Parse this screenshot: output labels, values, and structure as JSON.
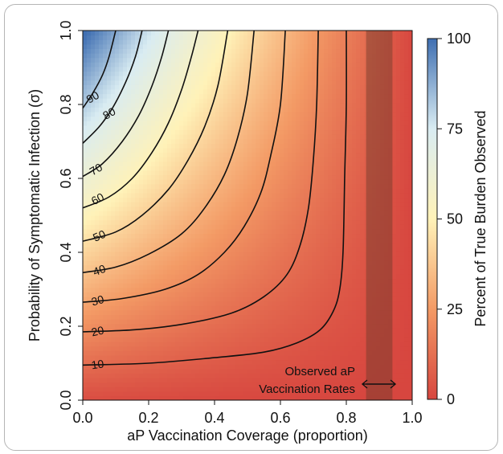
{
  "chart_data": {
    "type": "heatmap",
    "title": "",
    "xlabel": "aP Vaccination Coverage (proportion)",
    "ylabel": "Probability of Symptomatic Infection (σ)",
    "colorbar_label": "Percent of True Burden Observed",
    "xlim": [
      0,
      1
    ],
    "ylim": [
      0,
      1
    ],
    "x_ticks": [
      "0.0",
      "0.2",
      "0.4",
      "0.6",
      "0.8",
      "1.0"
    ],
    "y_ticks": [
      "0.0",
      "0.2",
      "0.4",
      "0.6",
      "0.8",
      "1.0"
    ],
    "colorbar_ticks": [
      "0",
      "25",
      "50",
      "75",
      "100"
    ],
    "colorbar_range": [
      0,
      100
    ],
    "colors": {
      "low": "#d7463f",
      "mid": "#fff2b8",
      "high": "#3f6fb2"
    },
    "contour_levels": [
      10,
      20,
      30,
      40,
      50,
      60,
      70,
      80,
      90
    ],
    "contour_labels": [
      "10",
      "20",
      "30",
      "40",
      "50",
      "60",
      "70",
      "80",
      "90"
    ],
    "contours": [
      {
        "level": 10,
        "points": [
          [
            0.0,
            0.095
          ],
          [
            0.2,
            0.1
          ],
          [
            0.4,
            0.115
          ],
          [
            0.55,
            0.13
          ],
          [
            0.65,
            0.155
          ],
          [
            0.72,
            0.19
          ],
          [
            0.76,
            0.24
          ],
          [
            0.78,
            0.3
          ],
          [
            0.79,
            0.4
          ],
          [
            0.795,
            0.6
          ],
          [
            0.8,
            0.8
          ],
          [
            0.8,
            1.0
          ]
        ]
      },
      {
        "level": 20,
        "points": [
          [
            0.0,
            0.185
          ],
          [
            0.15,
            0.19
          ],
          [
            0.3,
            0.205
          ],
          [
            0.45,
            0.235
          ],
          [
            0.55,
            0.28
          ],
          [
            0.62,
            0.34
          ],
          [
            0.66,
            0.42
          ],
          [
            0.685,
            0.52
          ],
          [
            0.7,
            0.65
          ],
          [
            0.71,
            0.8
          ],
          [
            0.715,
            1.0
          ]
        ]
      },
      {
        "level": 30,
        "points": [
          [
            0.0,
            0.265
          ],
          [
            0.12,
            0.275
          ],
          [
            0.25,
            0.3
          ],
          [
            0.35,
            0.34
          ],
          [
            0.43,
            0.4
          ],
          [
            0.49,
            0.47
          ],
          [
            0.54,
            0.56
          ],
          [
            0.57,
            0.66
          ],
          [
            0.6,
            0.8
          ],
          [
            0.615,
            1.0
          ]
        ]
      },
      {
        "level": 40,
        "points": [
          [
            0.0,
            0.345
          ],
          [
            0.1,
            0.36
          ],
          [
            0.2,
            0.395
          ],
          [
            0.3,
            0.45
          ],
          [
            0.37,
            0.52
          ],
          [
            0.43,
            0.61
          ],
          [
            0.47,
            0.71
          ],
          [
            0.5,
            0.83
          ],
          [
            0.52,
            1.0
          ]
        ]
      },
      {
        "level": 50,
        "points": [
          [
            0.0,
            0.43
          ],
          [
            0.1,
            0.455
          ],
          [
            0.18,
            0.5
          ],
          [
            0.26,
            0.57
          ],
          [
            0.32,
            0.65
          ],
          [
            0.37,
            0.74
          ],
          [
            0.41,
            0.85
          ],
          [
            0.44,
            1.0
          ]
        ]
      },
      {
        "level": 60,
        "points": [
          [
            0.0,
            0.52
          ],
          [
            0.08,
            0.55
          ],
          [
            0.15,
            0.6
          ],
          [
            0.21,
            0.67
          ],
          [
            0.26,
            0.75
          ],
          [
            0.3,
            0.84
          ],
          [
            0.33,
            0.93
          ],
          [
            0.35,
            1.0
          ]
        ]
      },
      {
        "level": 70,
        "points": [
          [
            0.0,
            0.605
          ],
          [
            0.06,
            0.64
          ],
          [
            0.12,
            0.7
          ],
          [
            0.17,
            0.77
          ],
          [
            0.21,
            0.85
          ],
          [
            0.24,
            0.93
          ],
          [
            0.26,
            1.0
          ]
        ]
      },
      {
        "level": 80,
        "points": [
          [
            0.0,
            0.695
          ],
          [
            0.05,
            0.74
          ],
          [
            0.09,
            0.79
          ],
          [
            0.13,
            0.86
          ],
          [
            0.16,
            0.93
          ],
          [
            0.18,
            1.0
          ]
        ]
      },
      {
        "level": 90,
        "points": [
          [
            0.0,
            0.79
          ],
          [
            0.03,
            0.83
          ],
          [
            0.06,
            0.88
          ],
          [
            0.08,
            0.93
          ],
          [
            0.1,
            1.0
          ]
        ]
      }
    ],
    "label_positions": [
      {
        "text": "10",
        "x": 0.045,
        "y": 0.097
      },
      {
        "text": "20",
        "x": 0.045,
        "y": 0.187
      },
      {
        "text": "30",
        "x": 0.045,
        "y": 0.27
      },
      {
        "text": "40",
        "x": 0.05,
        "y": 0.352
      },
      {
        "text": "50",
        "x": 0.05,
        "y": 0.445
      },
      {
        "text": "60",
        "x": 0.045,
        "y": 0.545
      },
      {
        "text": "70",
        "x": 0.04,
        "y": 0.625
      },
      {
        "text": "80",
        "x": 0.08,
        "y": 0.776
      },
      {
        "text": "90",
        "x": 0.03,
        "y": 0.82
      }
    ],
    "shaded_band": {
      "x_start": 0.86,
      "x_end": 0.94,
      "label_line1": "Observed aP",
      "label_line2": "Vaccination Rates"
    }
  }
}
